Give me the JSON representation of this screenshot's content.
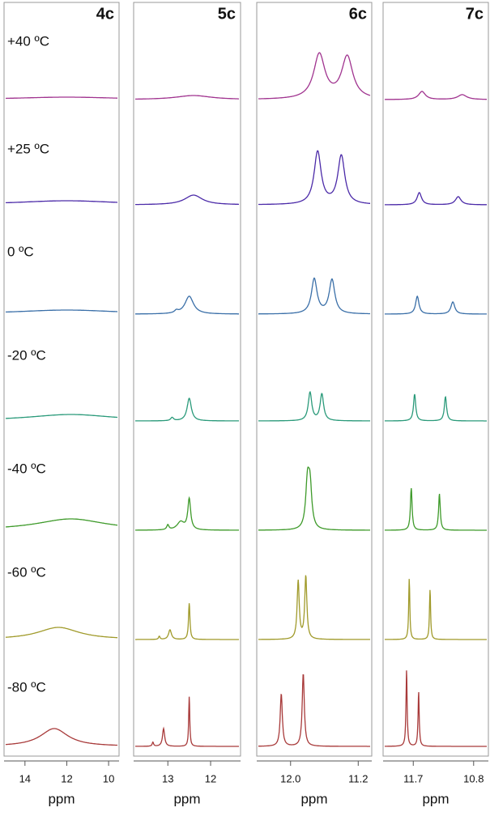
{
  "chart_data": [
    {
      "type": "spectrum",
      "title": "4c",
      "xlabel": "ppm",
      "xlim": [
        15,
        9.5
      ],
      "xticks": [
        14,
        12,
        10
      ],
      "series": [
        {
          "name": "+40 ºC",
          "color": "#a0338f",
          "x": [
            12
          ],
          "values": [
            3
          ],
          "widths": [
            3
          ]
        },
        {
          "name": "+25 ºC",
          "color": "#4b2aa8",
          "x": [
            12
          ],
          "values": [
            5
          ],
          "widths": [
            3
          ]
        },
        {
          "name": "0 ºC",
          "color": "#3a6fa8",
          "x": [
            12
          ],
          "values": [
            5
          ],
          "widths": [
            3
          ]
        },
        {
          "name": "-20 ºC",
          "color": "#2a9a7a",
          "x": [
            11.8
          ],
          "values": [
            8
          ],
          "widths": [
            2.5
          ]
        },
        {
          "name": "-40 ºC",
          "color": "#3e9a2a",
          "x": [
            11.8
          ],
          "values": [
            14
          ],
          "widths": [
            2
          ]
        },
        {
          "name": "-60 ºC",
          "color": "#a09a2a",
          "x": [
            12.4
          ],
          "values": [
            15
          ],
          "widths": [
            1.2
          ]
        },
        {
          "name": "-80 ºC",
          "color": "#a83a3a",
          "x": [
            12.6
          ],
          "values": [
            22
          ],
          "widths": [
            0.8
          ]
        }
      ]
    },
    {
      "type": "spectrum",
      "title": "5c",
      "xlabel": "ppm",
      "xlim": [
        13.8,
        11.3
      ],
      "xticks": [
        13,
        12
      ],
      "series": [
        {
          "color": "#a0338f",
          "x": [
            12.4
          ],
          "values": [
            5
          ],
          "widths": [
            0.5
          ]
        },
        {
          "color": "#4b2aa8",
          "x": [
            12.4
          ],
          "values": [
            12
          ],
          "widths": [
            0.25
          ]
        },
        {
          "color": "#3a6fa8",
          "x": [
            12.5,
            12.8
          ],
          "values": [
            22,
            3
          ],
          "widths": [
            0.12,
            0.05
          ]
        },
        {
          "color": "#2a9a7a",
          "x": [
            12.5,
            12.9
          ],
          "values": [
            28,
            4
          ],
          "widths": [
            0.06,
            0.04
          ]
        },
        {
          "color": "#3e9a2a",
          "x": [
            12.5,
            12.7,
            13.0
          ],
          "values": [
            38,
            10,
            6
          ],
          "widths": [
            0.04,
            0.1,
            0.03
          ]
        },
        {
          "color": "#a09a2a",
          "x": [
            12.5,
            12.95,
            13.2
          ],
          "values": [
            45,
            12,
            4
          ],
          "widths": [
            0.02,
            0.04,
            0.02
          ]
        },
        {
          "color": "#a83a3a",
          "x": [
            12.5,
            13.1,
            13.35
          ],
          "values": [
            62,
            22,
            5
          ],
          "widths": [
            0.015,
            0.03,
            0.02
          ]
        }
      ]
    },
    {
      "type": "spectrum",
      "title": "6c",
      "xlabel": "ppm",
      "xlim": [
        12.4,
        11.04
      ],
      "xticks": [
        {
          "value": 12,
          "label": "12.0"
        },
        11.2
      ],
      "series": [
        {
          "color": "#a0338f",
          "x": [
            11.66,
            11.33
          ],
          "values": [
            55,
            52
          ],
          "widths": [
            0.08,
            0.08
          ]
        },
        {
          "color": "#4b2aa8",
          "x": [
            11.68,
            11.4
          ],
          "values": [
            65,
            60
          ],
          "widths": [
            0.05,
            0.05
          ]
        },
        {
          "color": "#3a6fa8",
          "x": [
            11.72,
            11.51
          ],
          "values": [
            43,
            42
          ],
          "widths": [
            0.04,
            0.04
          ]
        },
        {
          "color": "#2a9a7a",
          "x": [
            11.77,
            11.63
          ],
          "values": [
            35,
            33
          ],
          "widths": [
            0.025,
            0.025
          ]
        },
        {
          "color": "#3e9a2a",
          "x": [
            11.8,
            11.77
          ],
          "values": [
            55,
            50
          ],
          "widths": [
            0.025,
            0.025
          ]
        },
        {
          "color": "#a09a2a",
          "x": [
            11.91,
            11.82
          ],
          "values": [
            72,
            78
          ],
          "widths": [
            0.015,
            0.015
          ]
        },
        {
          "color": "#a83a3a",
          "x": [
            12.11,
            11.85
          ],
          "values": [
            65,
            90
          ],
          "widths": [
            0.015,
            0.015
          ]
        }
      ]
    },
    {
      "type": "spectrum",
      "title": "7c",
      "xlabel": "ppm",
      "xlim": [
        12.15,
        10.58
      ],
      "xticks": [
        11.7,
        10.8
      ],
      "series": [
        {
          "color": "#a0338f",
          "x": [
            11.57,
            10.97
          ],
          "values": [
            10,
            6
          ],
          "widths": [
            0.06,
            0.08
          ]
        },
        {
          "color": "#4b2aa8",
          "x": [
            11.61,
            11.03
          ],
          "values": [
            15,
            10
          ],
          "widths": [
            0.04,
            0.05
          ]
        },
        {
          "color": "#3a6fa8",
          "x": [
            11.64,
            11.11
          ],
          "values": [
            22,
            15
          ],
          "widths": [
            0.03,
            0.035
          ]
        },
        {
          "color": "#2a9a7a",
          "x": [
            11.68,
            11.22
          ],
          "values": [
            33,
            30
          ],
          "widths": [
            0.02,
            0.02
          ]
        },
        {
          "color": "#3e9a2a",
          "x": [
            11.73,
            11.31
          ],
          "values": [
            52,
            45
          ],
          "widths": [
            0.015,
            0.015
          ]
        },
        {
          "color": "#a09a2a",
          "x": [
            11.76,
            11.45
          ],
          "values": [
            75,
            62
          ],
          "widths": [
            0.01,
            0.01
          ]
        },
        {
          "color": "#a83a3a",
          "x": [
            11.8,
            11.62
          ],
          "values": [
            95,
            68
          ],
          "widths": [
            0.01,
            0.01
          ]
        }
      ]
    }
  ]
}
